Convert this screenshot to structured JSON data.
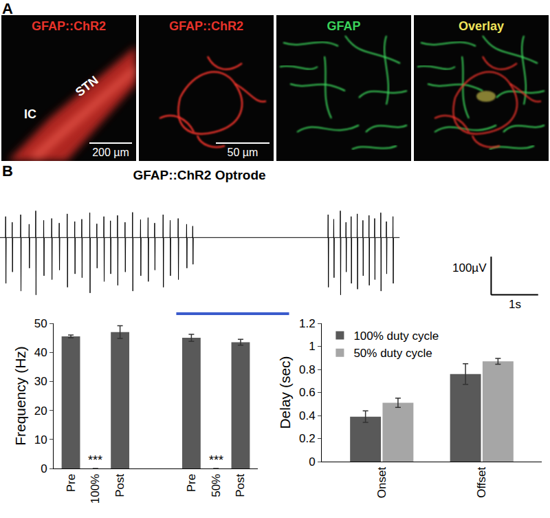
{
  "figure": {
    "panels": [
      {
        "label": "A",
        "images": [
          {
            "title": "GFAP::ChR2",
            "title_color": "#e8332a",
            "labels": [
              "STN",
              "IC"
            ],
            "scale_bar": "200 µm"
          },
          {
            "title": "GFAP::ChR2",
            "title_color": "#e8332a",
            "scale_bar": "50 µm"
          },
          {
            "title": "GFAP",
            "title_color": "#3ad35a"
          },
          {
            "title": "Overlay",
            "title_color": "#f0e45a"
          }
        ]
      },
      {
        "label": "B"
      }
    ]
  },
  "chart_data": [
    {
      "type": "line",
      "title": "GFAP::ChR2 Optrode",
      "color": "#000000",
      "tick_labels": false,
      "grid": false,
      "xlim": [
        0,
        11.7
      ],
      "ylim": [
        -210,
        150
      ],
      "trace_span": [
        0,
        8.5
      ],
      "spike_times": [
        0.12,
        0.26,
        0.44,
        0.62,
        0.76,
        0.93,
        1.1,
        1.26,
        1.43,
        1.59,
        1.74,
        1.91,
        2.06,
        2.21,
        2.35,
        2.5,
        2.66,
        2.82,
        2.99,
        3.15,
        3.29,
        3.47,
        3.62,
        3.79,
        3.97,
        4.1,
        6.98,
        7.1,
        7.24,
        7.36,
        7.47,
        7.6,
        7.72,
        7.85,
        7.97,
        8.1,
        8.22,
        8.36
      ],
      "spike_peaks": [
        55,
        40,
        60,
        35,
        70,
        45,
        50,
        38,
        62,
        42,
        48,
        65,
        36,
        55,
        44,
        58,
        40,
        66,
        47,
        52,
        38,
        60,
        45,
        50,
        35,
        30,
        60,
        48,
        70,
        40,
        55,
        62,
        45,
        58,
        50,
        65,
        42,
        55
      ],
      "spike_troughs": [
        -120,
        -90,
        -140,
        -80,
        -150,
        -100,
        -110,
        -85,
        -130,
        -95,
        -105,
        -145,
        -80,
        -115,
        -95,
        -125,
        -90,
        -140,
        -100,
        -115,
        -85,
        -130,
        -100,
        -110,
        -80,
        -70,
        -130,
        -105,
        -150,
        -90,
        -120,
        -135,
        -100,
        -125,
        -110,
        -140,
        -95,
        -120
      ],
      "light": {
        "range": [
          3.75,
          6.15
        ],
        "color": "#3a5bcc"
      },
      "scale_bars": {
        "x": {
          "value": 1,
          "label": "1s"
        },
        "y": {
          "value": 100,
          "label": "100µV"
        }
      }
    },
    {
      "type": "bar",
      "categories": [
        "Pre",
        "100%",
        "Post",
        "Pre",
        "50%",
        "Post"
      ],
      "values": [
        45.5,
        0,
        47,
        45,
        0,
        43.5
      ],
      "errors": [
        0.5,
        0,
        2.2,
        1.2,
        0,
        1.0
      ],
      "color": "#595959",
      "y_label": "Frequency (Hz)",
      "ylim": [
        0,
        50
      ],
      "yticks": [
        0,
        10,
        20,
        30,
        40,
        50
      ],
      "grid": false,
      "annotations": [
        {
          "text": "***",
          "x": 1,
          "y": 0
        },
        {
          "text": "***",
          "x": 4,
          "y": 0
        }
      ]
    },
    {
      "type": "bar",
      "categories": [
        "Onset",
        "Offset"
      ],
      "series": [
        {
          "name": "100% duty cycle",
          "color": "#595959",
          "values": [
            0.39,
            0.76
          ],
          "errors": [
            0.05,
            0.09
          ]
        },
        {
          "name": "50% duty cycle",
          "color": "#a6a6a6",
          "values": [
            0.51,
            0.87
          ],
          "errors": [
            0.04,
            0.025
          ]
        }
      ],
      "y_label": "Delay (sec)",
      "ylim": [
        0,
        1.2
      ],
      "yticks": [
        0,
        0.2,
        0.4,
        0.6,
        0.8,
        1,
        1.2
      ],
      "grid": false,
      "legend": "top-left"
    }
  ]
}
